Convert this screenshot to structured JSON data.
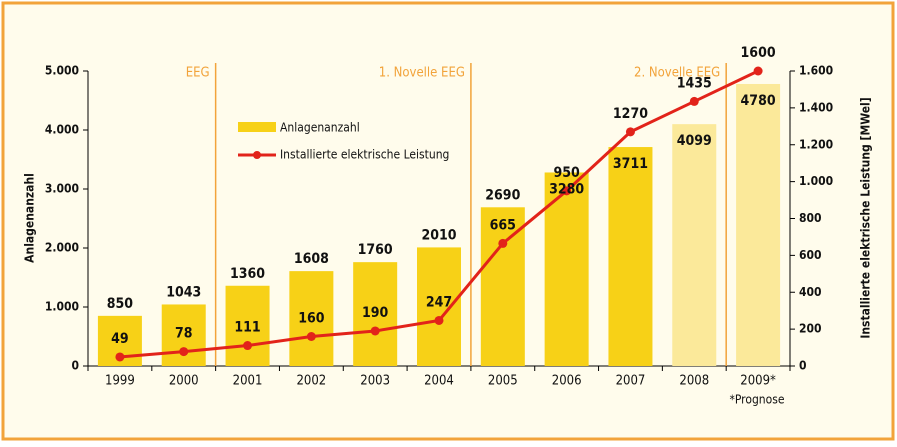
{
  "chart_data": {
    "type": "bar_line",
    "categories": [
      "1999",
      "2000",
      "2001",
      "2002",
      "2003",
      "2004",
      "2005",
      "2006",
      "2007",
      "2008",
      "2009*"
    ],
    "series": [
      {
        "name": "Anlagenanzahl",
        "type": "bar",
        "color": "#f7d117",
        "forecast_color": "#fbe99a",
        "forecast_from": "2008",
        "values": [
          850,
          1043,
          1360,
          1608,
          1760,
          2010,
          2690,
          3280,
          3711,
          4099,
          4780
        ]
      },
      {
        "name": "Installierte elektrische Leistung",
        "type": "line",
        "axis": "y2",
        "color": "#e2231a",
        "values": [
          49,
          78,
          111,
          160,
          190,
          247,
          665,
          950,
          1270,
          1435,
          1600
        ]
      }
    ],
    "ylabel": "Anlagenanzahl",
    "y2label": "Installierte elektrische Leistung [MWel]",
    "ylim": [
      0,
      5000
    ],
    "yticks": [
      0,
      {
        "value": 1000,
        "label": "1.000"
      },
      {
        "value": 2000,
        "label": "2.000"
      },
      {
        "value": 3000,
        "label": "3.000"
      },
      {
        "value": 4000,
        "label": "4.000"
      },
      {
        "value": 5000,
        "label": "5.000"
      }
    ],
    "y2lim": [
      0,
      1600
    ],
    "y2ticks": [
      0,
      200,
      400,
      600,
      800,
      {
        "value": 1000,
        "label": "1.000"
      },
      {
        "value": 1200,
        "label": "1.200"
      },
      {
        "value": 1400,
        "label": "1.400"
      },
      {
        "value": 1600,
        "label": "1.600"
      }
    ],
    "annotations": [
      {
        "text": "EEG",
        "before": "2001"
      },
      {
        "text": "1. Novelle EEG",
        "before": "2005"
      },
      {
        "text": "2. Novelle EEG",
        "before": "2009*"
      }
    ],
    "footnote": "*Prognose"
  }
}
